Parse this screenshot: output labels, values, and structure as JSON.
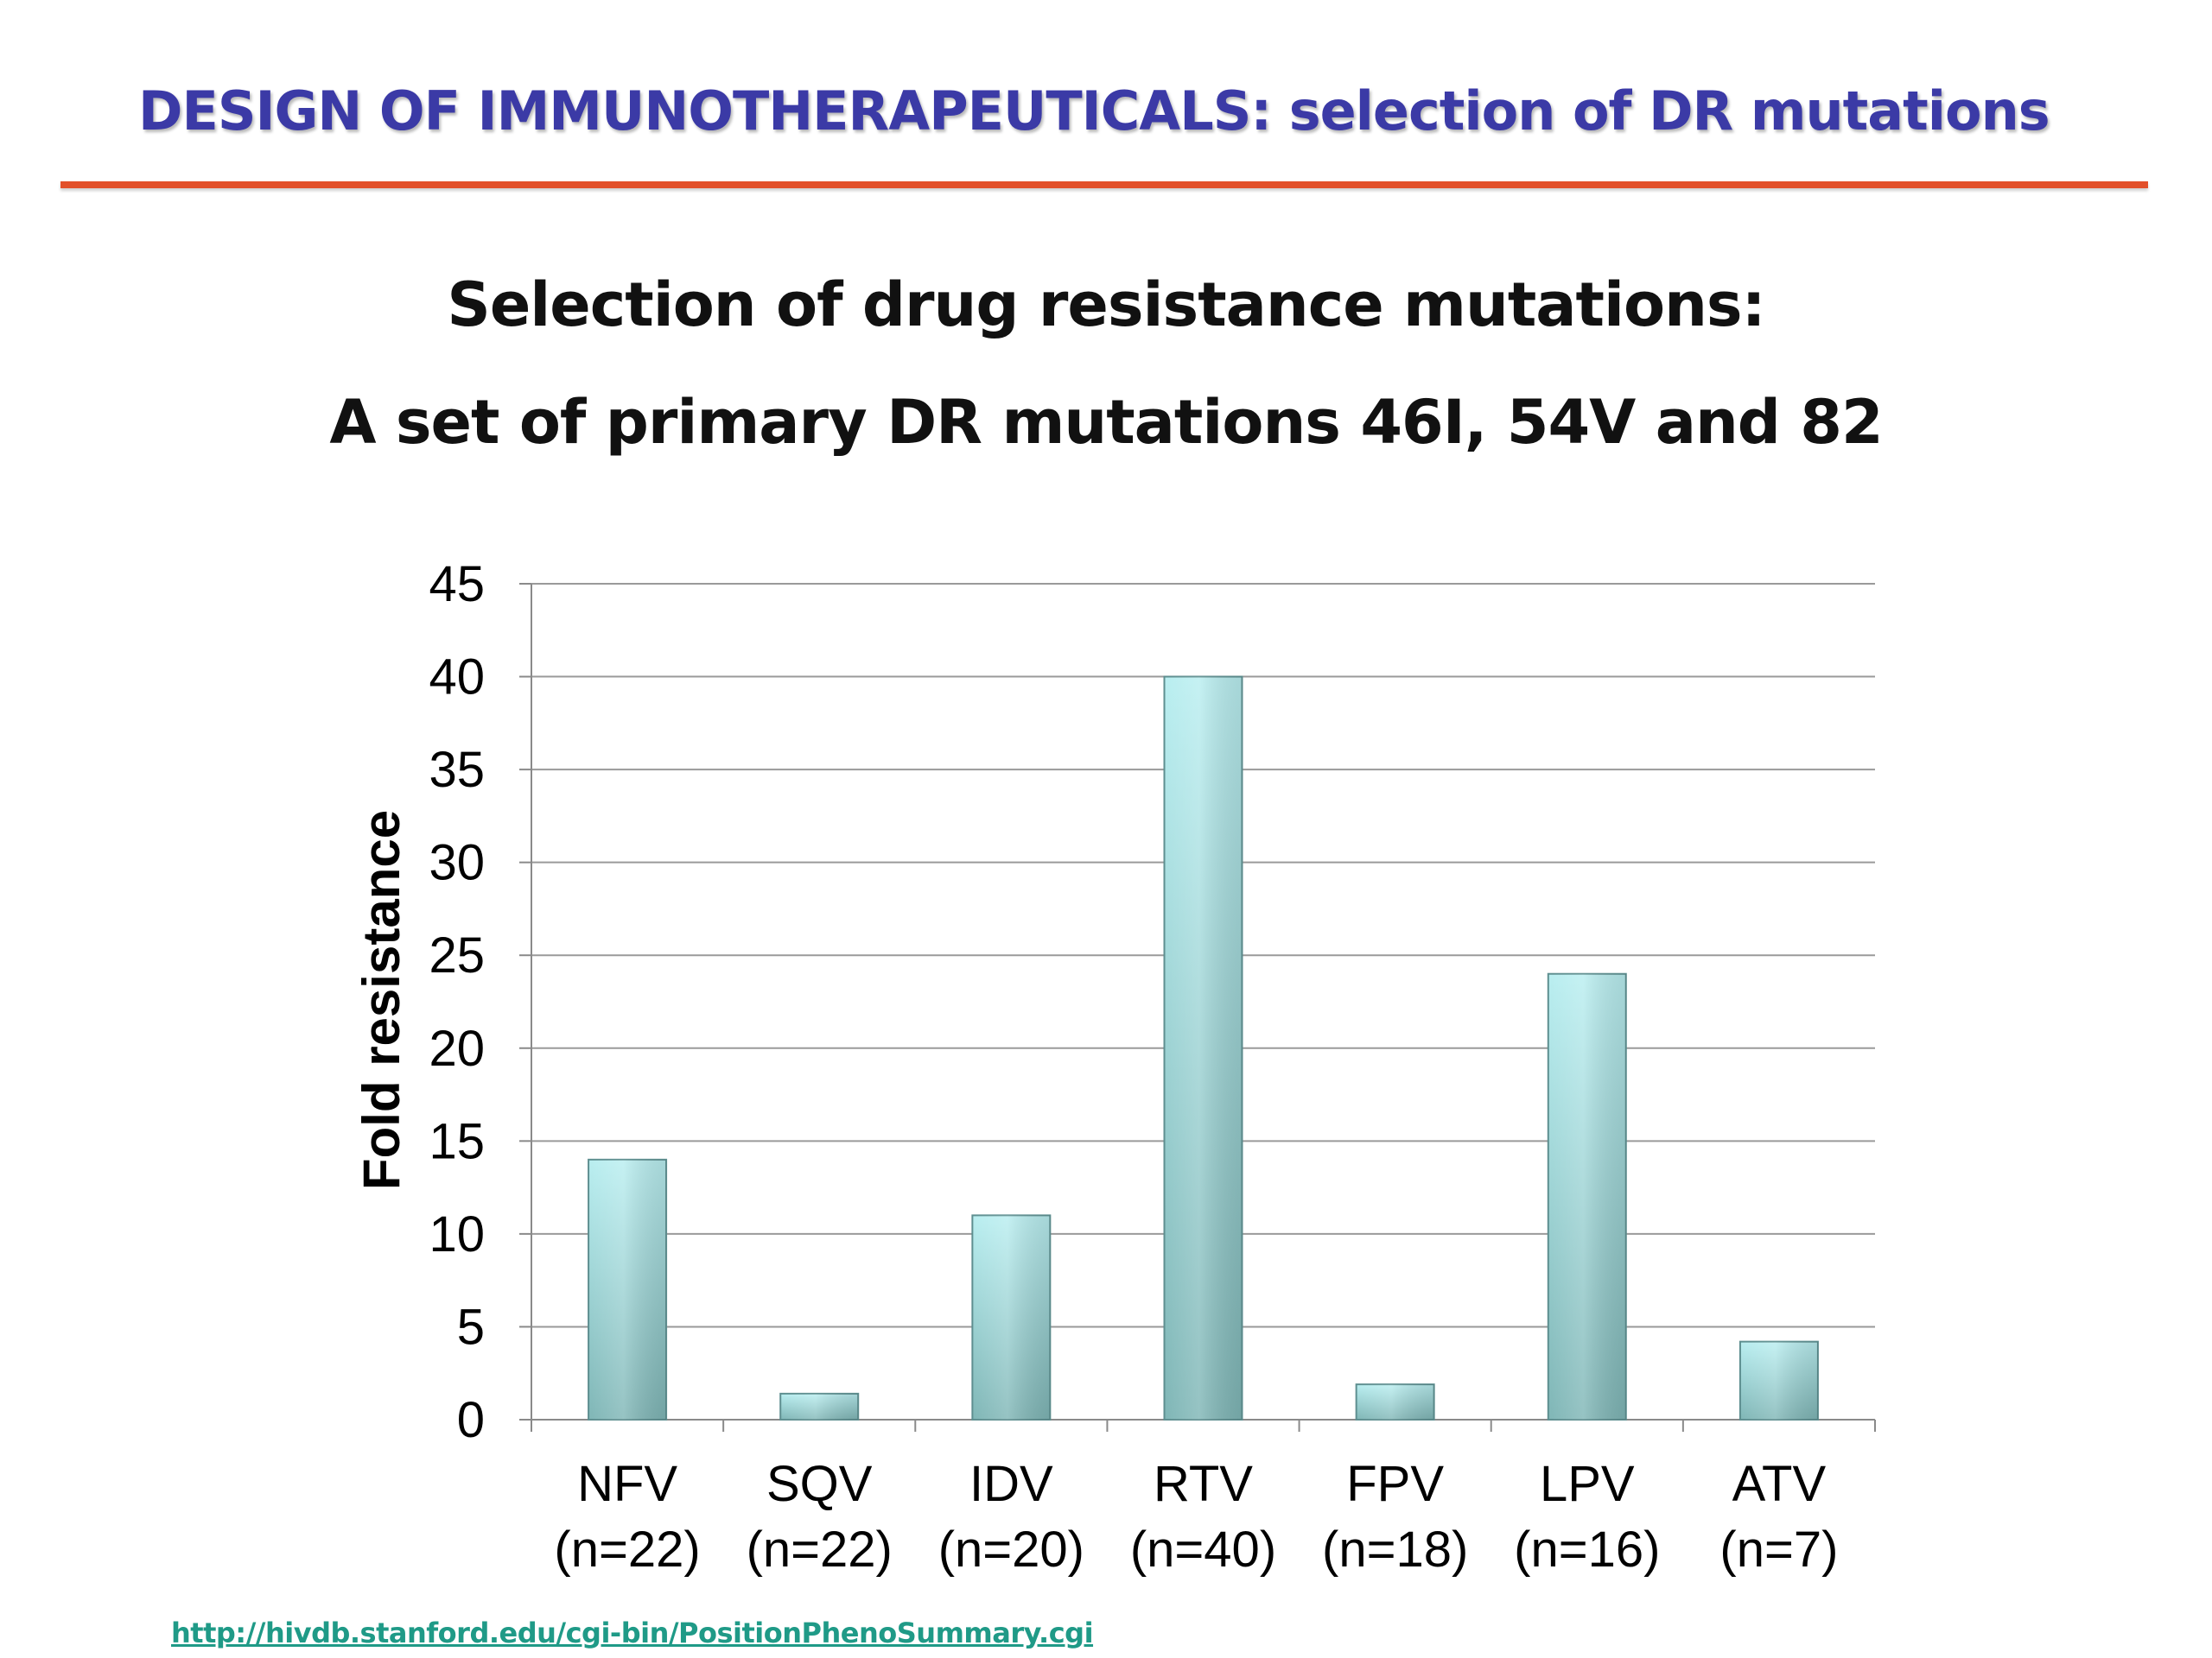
{
  "slide": {
    "title": "DESIGN OF IMMUNOTHERAPEUTICALS: selection of DR mutations",
    "subtitle_line1": "Selection of drug resistance mutations:",
    "subtitle_line2": "A set of primary DR mutations 46I, 54V and 82",
    "source_url": "http://hivdb.stanford.edu/cgi-bin/PositionPhenoSummary.cgi"
  },
  "chart_data": {
    "type": "bar",
    "categories": [
      "NFV",
      "SQV",
      "IDV",
      "RTV",
      "FPV",
      "LPV",
      "ATV"
    ],
    "category_counts": [
      "(n=22)",
      "(n=22)",
      "(n=20)",
      "(n=40)",
      "(n=18)",
      "(n=16)",
      "(n=7)"
    ],
    "values": [
      14,
      1.4,
      11,
      40,
      1.9,
      24,
      4.2
    ],
    "title": "",
    "xlabel": "",
    "ylabel": "Fold resistance",
    "ylim": [
      0,
      45
    ],
    "yticks": [
      0,
      5,
      10,
      15,
      20,
      25,
      30,
      35,
      40,
      45
    ],
    "grid": true,
    "legend": "none",
    "bar_color_top": "#b9eef0",
    "bar_color_bottom": "#7fb6b6",
    "bar_edge_color": "#5e8f90",
    "gridline_color": "#9a9a9a"
  }
}
